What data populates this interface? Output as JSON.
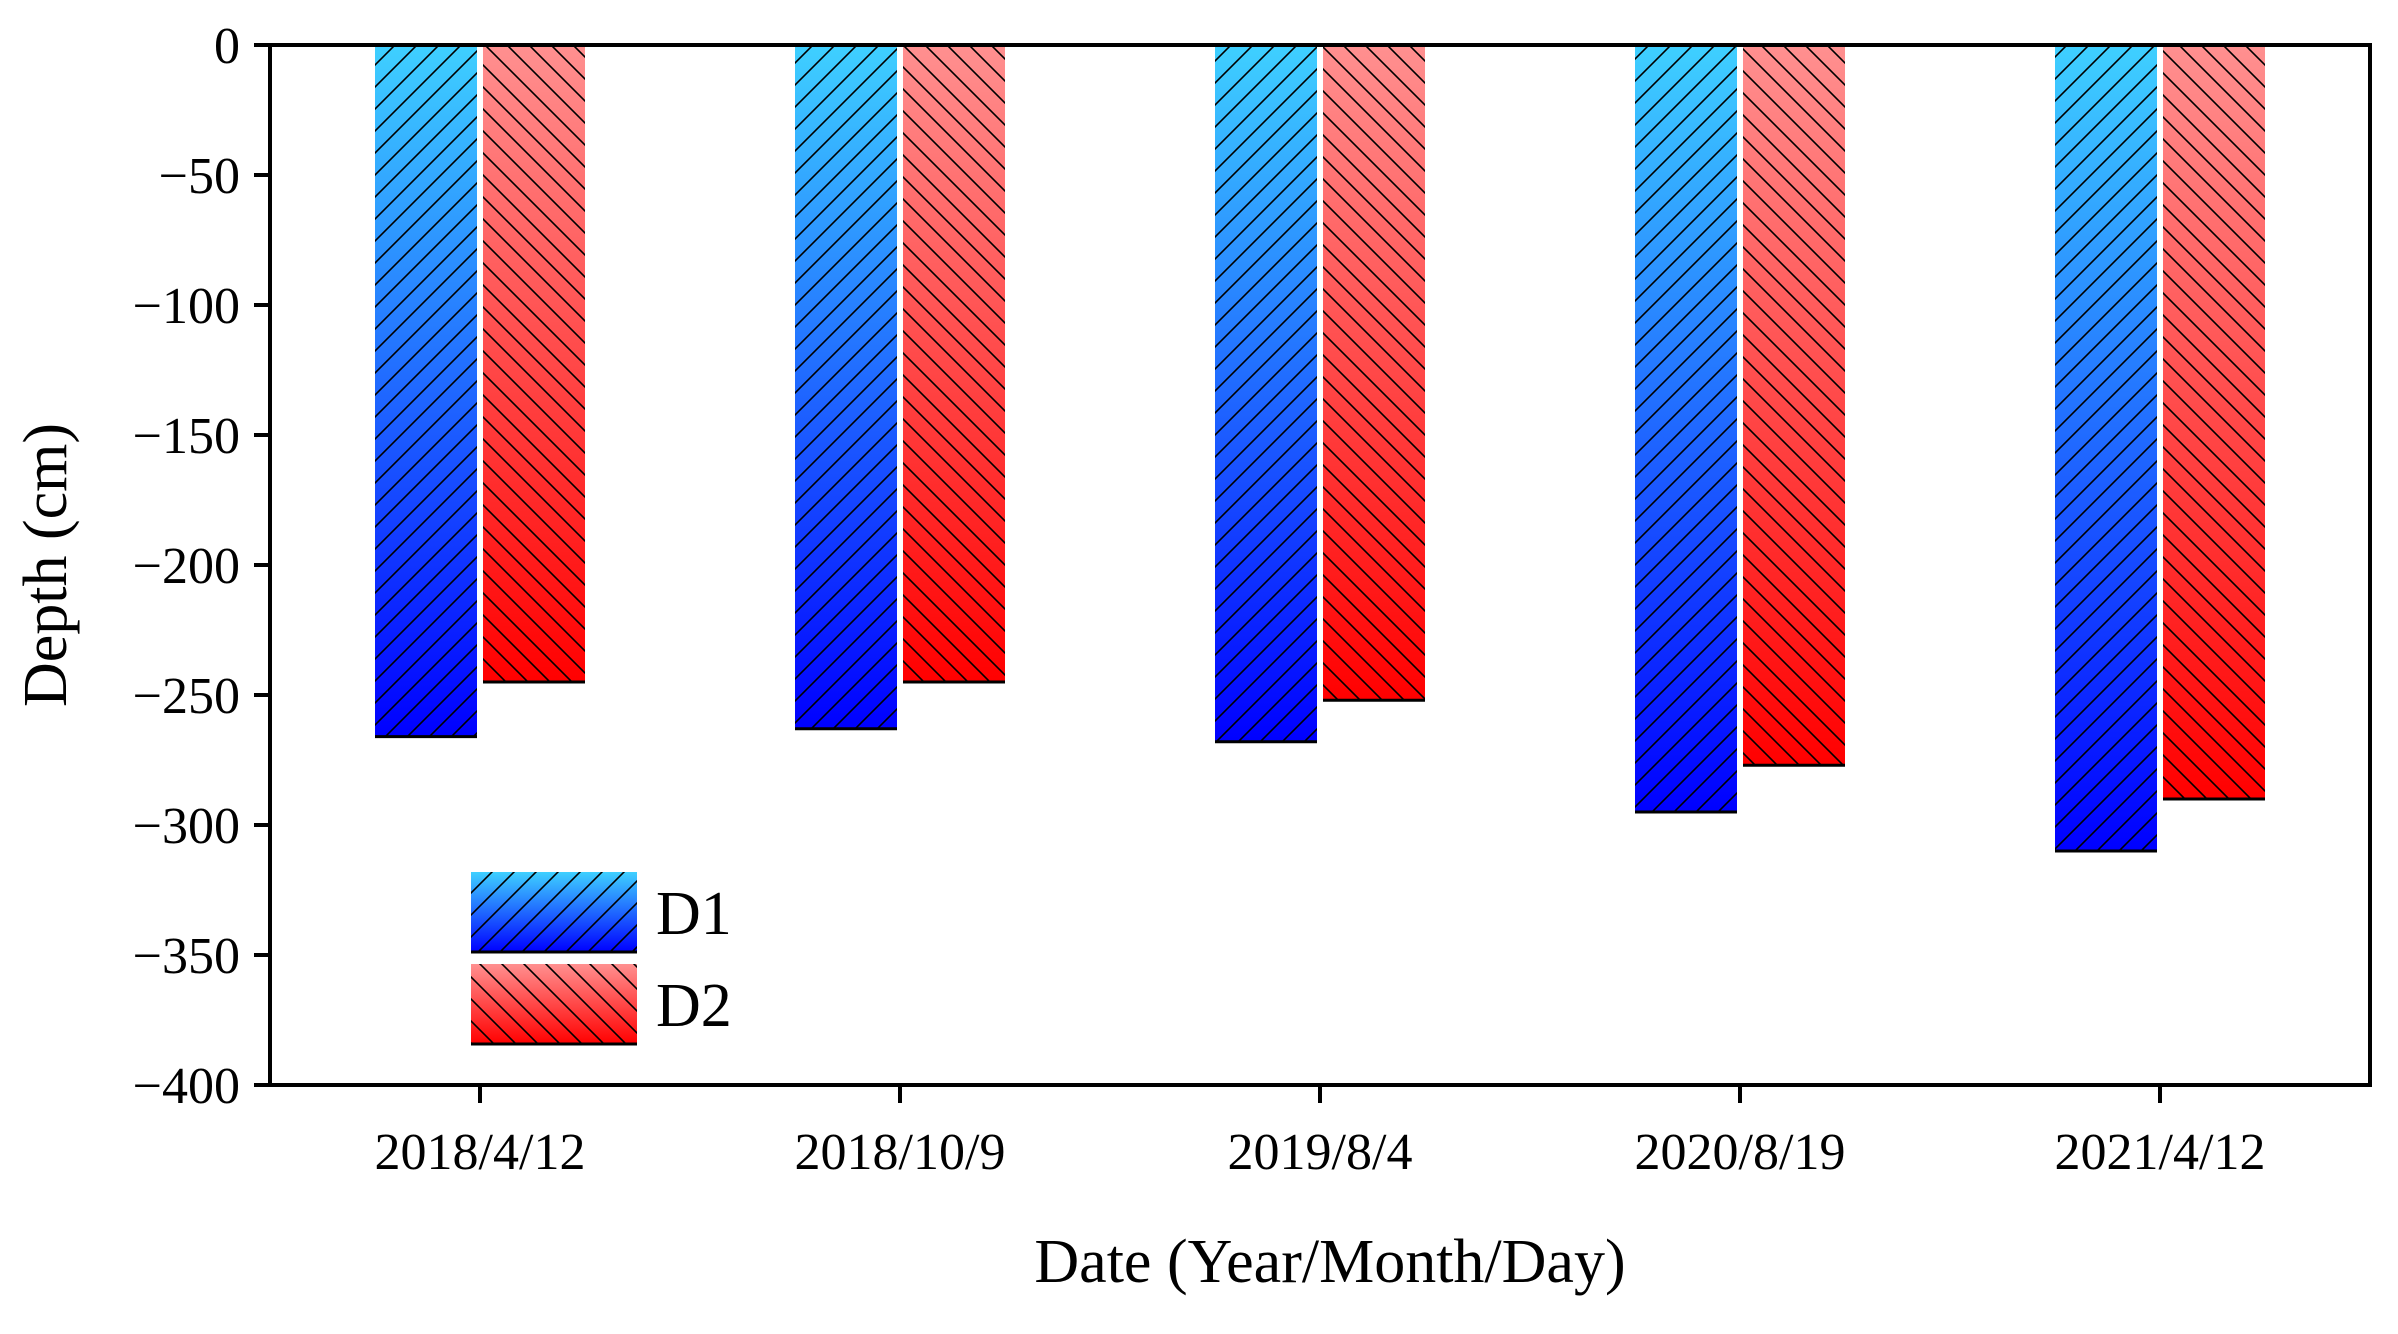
{
  "chart_data": {
    "type": "bar",
    "title": "",
    "xlabel": "Date (Year/Month/Day)",
    "ylabel": "Depth (cm)",
    "categories": [
      "2018/4/12",
      "2018/10/9",
      "2019/8/4",
      "2020/8/19",
      "2021/4/12"
    ],
    "series": [
      {
        "name": "D1",
        "values": [
          -266,
          -263,
          -268,
          -295,
          -310
        ],
        "color_top": "#3fd0ff",
        "color_bottom": "#0000ff"
      },
      {
        "name": "D2",
        "values": [
          -245,
          -245,
          -252,
          -277,
          -290
        ],
        "color_top": "#ff9090",
        "color_bottom": "#ff0000"
      }
    ],
    "ylim": [
      -400,
      0
    ],
    "yticks": [
      0,
      -50,
      -100,
      -150,
      -200,
      -250,
      -300,
      -350,
      -400
    ],
    "ytick_labels": [
      "0",
      "−50",
      "−100",
      "−150",
      "−200",
      "−250",
      "−300",
      "−350",
      "−400"
    ],
    "grid": false,
    "legend": {
      "position": "bottom-left",
      "entries": [
        "D1",
        "D2"
      ]
    }
  }
}
